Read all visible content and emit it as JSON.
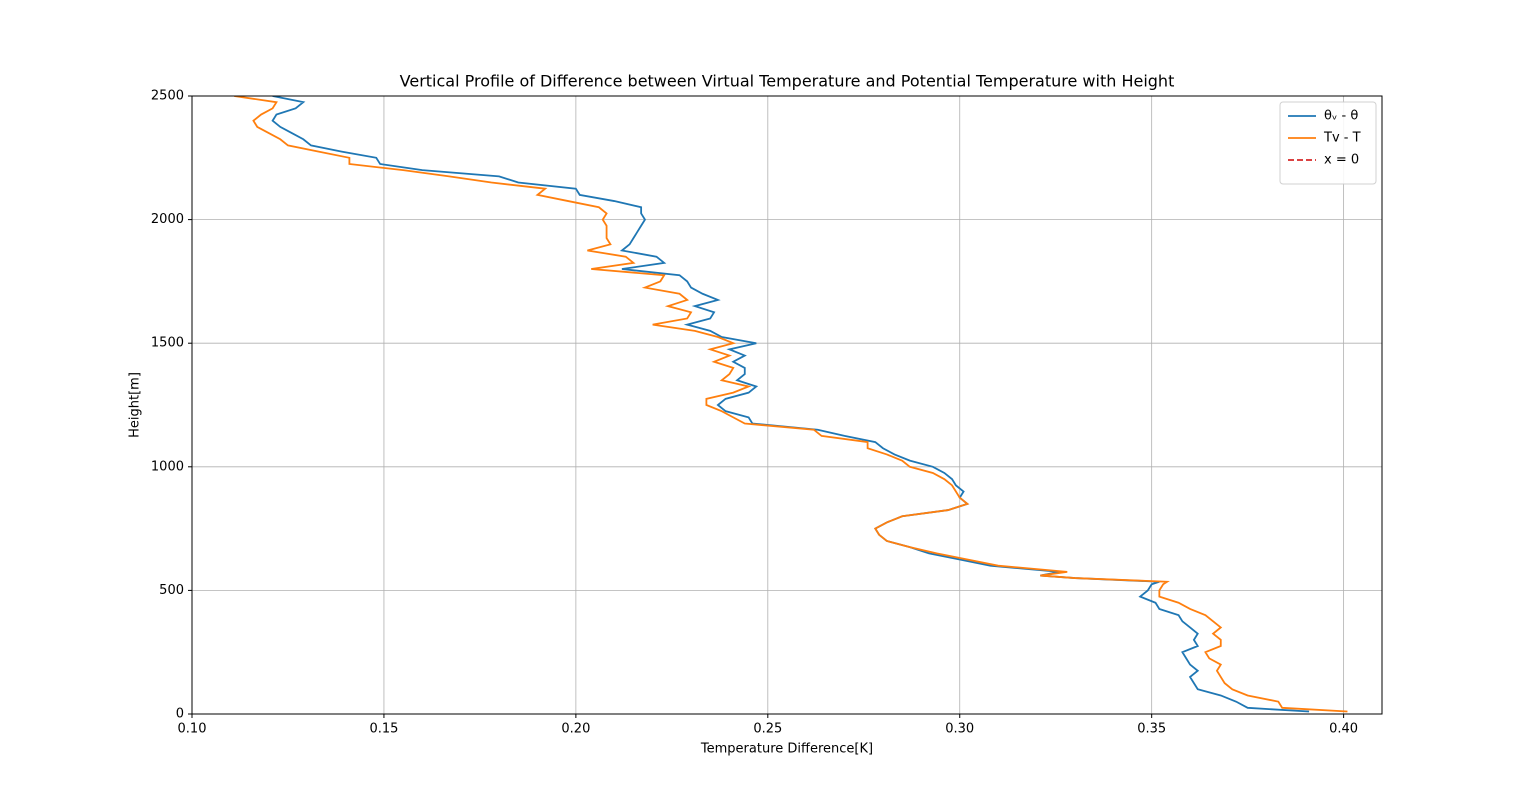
{
  "chart_data": {
    "type": "line",
    "orientation": "vertical",
    "title": "Vertical Profile of Difference between Virtual Temperature and Potential Temperature with Height",
    "x_label": "Temperature Difference[K]",
    "y_label": "Height[m]",
    "xlim": [
      0.1,
      0.41
    ],
    "ylim": [
      0,
      2500
    ],
    "xticks": [
      {
        "value": 0.1,
        "label": "0.10"
      },
      0.15,
      {
        "value": 0.2,
        "label": "0.20"
      },
      0.25,
      {
        "value": 0.3,
        "label": "0.30"
      },
      0.35,
      {
        "value": 0.4,
        "label": "0.40"
      }
    ],
    "yticks": [
      0,
      500,
      1000,
      1500,
      2000,
      2500
    ],
    "grid": true,
    "legend": "upper right",
    "y": [
      10,
      25,
      50,
      75,
      100,
      125,
      150,
      175,
      200,
      225,
      250,
      275,
      300,
      325,
      350,
      375,
      400,
      425,
      450,
      475,
      500,
      525,
      535,
      550,
      560,
      575,
      600,
      625,
      650,
      675,
      700,
      725,
      750,
      775,
      800,
      825,
      850,
      875,
      900,
      925,
      950,
      975,
      1000,
      1025,
      1050,
      1075,
      1100,
      1125,
      1150,
      1175,
      1200,
      1225,
      1250,
      1275,
      1300,
      1325,
      1350,
      1375,
      1400,
      1425,
      1450,
      1475,
      1500,
      1525,
      1550,
      1575,
      1600,
      1625,
      1650,
      1675,
      1700,
      1725,
      1750,
      1775,
      1800,
      1825,
      1850,
      1875,
      1900,
      1925,
      1950,
      1975,
      2000,
      2025,
      2050,
      2075,
      2100,
      2125,
      2150,
      2175,
      2200,
      2225,
      2250,
      2275,
      2300,
      2325,
      2350,
      2375,
      2400,
      2425,
      2450,
      2475,
      2500
    ],
    "series": [
      {
        "name": "θᵥ - θ",
        "color": "#1f77b4",
        "values": [
          0.391,
          0.375,
          0.372,
          0.368,
          0.362,
          0.361,
          0.36,
          0.362,
          0.36,
          0.359,
          0.358,
          0.362,
          0.361,
          0.362,
          0.36,
          0.358,
          0.357,
          0.352,
          0.351,
          0.347,
          0.349,
          0.35,
          0.352,
          0.33,
          0.321,
          0.326,
          0.308,
          0.3,
          0.292,
          0.287,
          0.281,
          0.279,
          0.278,
          0.281,
          0.285,
          0.297,
          0.302,
          0.3,
          0.301,
          0.299,
          0.298,
          0.296,
          0.293,
          0.287,
          0.283,
          0.28,
          0.278,
          0.27,
          0.263,
          0.246,
          0.245,
          0.239,
          0.237,
          0.239,
          0.245,
          0.247,
          0.242,
          0.244,
          0.244,
          0.241,
          0.244,
          0.24,
          0.247,
          0.238,
          0.235,
          0.229,
          0.235,
          0.236,
          0.231,
          0.237,
          0.233,
          0.23,
          0.229,
          0.227,
          0.212,
          0.223,
          0.221,
          0.212,
          0.214,
          0.215,
          0.216,
          0.217,
          0.218,
          0.217,
          0.217,
          0.21,
          0.201,
          0.2,
          0.185,
          0.18,
          0.16,
          0.149,
          0.148,
          0.139,
          0.131,
          0.129,
          0.126,
          0.123,
          0.121,
          0.122,
          0.127,
          0.129,
          0.121
        ]
      },
      {
        "name": "Tv - T",
        "color": "#ff7f0e",
        "values": [
          0.401,
          0.384,
          0.383,
          0.375,
          0.371,
          0.369,
          0.368,
          0.367,
          0.368,
          0.365,
          0.364,
          0.368,
          0.368,
          0.366,
          0.368,
          0.366,
          0.364,
          0.36,
          0.357,
          0.352,
          0.352,
          0.353,
          0.354,
          0.33,
          0.321,
          0.328,
          0.31,
          0.302,
          0.294,
          0.287,
          0.281,
          0.279,
          0.278,
          0.281,
          0.285,
          0.297,
          0.302,
          0.3,
          0.299,
          0.298,
          0.296,
          0.293,
          0.287,
          0.285,
          0.281,
          0.276,
          0.276,
          0.264,
          0.262,
          0.244,
          0.241,
          0.238,
          0.234,
          0.234,
          0.241,
          0.245,
          0.238,
          0.24,
          0.241,
          0.236,
          0.24,
          0.235,
          0.241,
          0.237,
          0.231,
          0.22,
          0.229,
          0.23,
          0.224,
          0.229,
          0.227,
          0.218,
          0.222,
          0.223,
          0.204,
          0.215,
          0.213,
          0.203,
          0.209,
          0.208,
          0.208,
          0.208,
          0.207,
          0.208,
          0.206,
          0.198,
          0.19,
          0.192,
          0.178,
          0.167,
          0.155,
          0.141,
          0.141,
          0.133,
          0.125,
          0.123,
          0.12,
          0.117,
          0.116,
          0.118,
          0.121,
          0.122,
          0.111
        ]
      },
      {
        "name": "x = 0",
        "color": "#d62728",
        "dashed": true,
        "value": 0
      }
    ]
  }
}
